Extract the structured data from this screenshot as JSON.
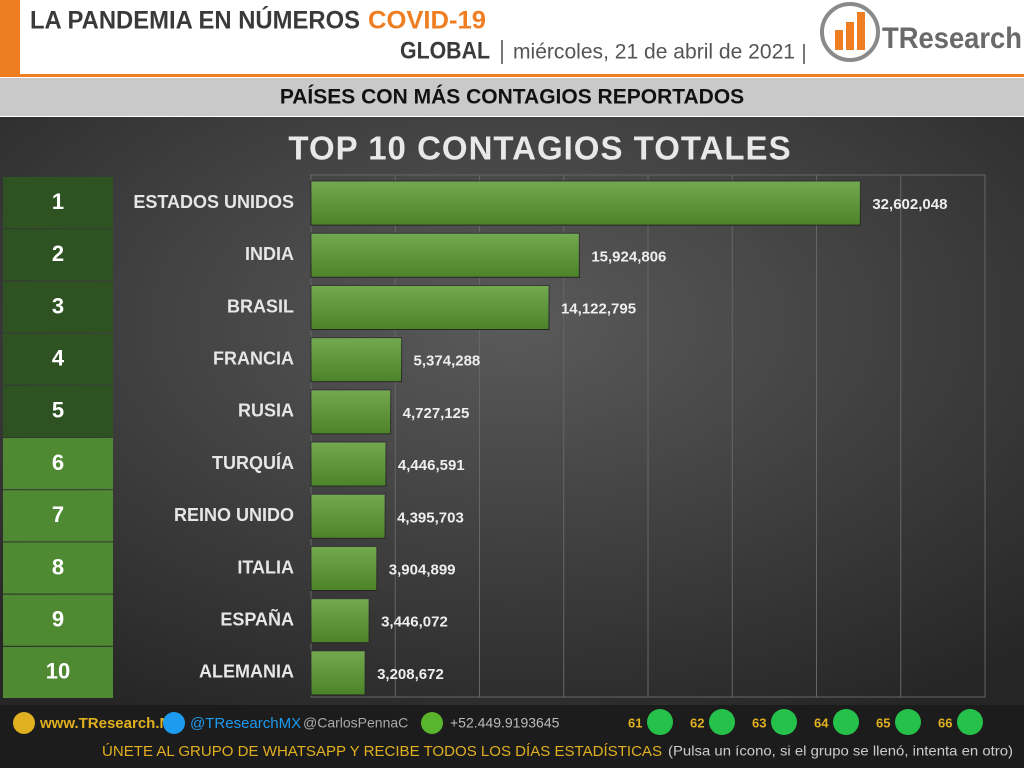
{
  "header": {
    "title": "LA PANDEMIA EN NÚMEROS",
    "title_highlight": "COVID-19",
    "scope": "GLOBAL",
    "date": "miércoles, 21 de abril de 2021",
    "logo": "TResearch"
  },
  "banner": "PAÍSES CON MÁS CONTAGIOS REPORTADOS",
  "chart_data": {
    "type": "bar",
    "orientation": "horizontal",
    "title": "TOP 10 CONTAGIOS TOTALES",
    "ranks": [
      1,
      2,
      3,
      4,
      5,
      6,
      7,
      8,
      9,
      10
    ],
    "categories": [
      "ESTADOS UNIDOS",
      "INDIA",
      "BRASIL",
      "FRANCIA",
      "RUSIA",
      "TURQUÍA",
      "REINO UNIDO",
      "ITALIA",
      "ESPAÑA",
      "ALEMANIA"
    ],
    "values": [
      32602048,
      15924806,
      14122795,
      5374288,
      4727125,
      4446591,
      4395703,
      3904899,
      3446072,
      3208672
    ],
    "value_labels": [
      "32,602,048",
      "15,924,806",
      "14,122,795",
      "5,374,288",
      "4,727,125",
      "4,446,591",
      "4,395,703",
      "3,904,899",
      "3,446,072",
      "3,208,672"
    ],
    "color": "#5a9a30",
    "xlim": [
      0,
      40000000
    ],
    "grid": true
  },
  "footer": {
    "website": "www.TResearch.Mx",
    "twitter": "@TResearchMX",
    "twitter2": "@CarlosPennaC",
    "phone": "+52.449.9193645",
    "groups": [
      "61",
      "62",
      "63",
      "64",
      "65",
      "66"
    ],
    "call": "ÚNETE AL GRUPO DE WHATSAPP Y RECIBE TODOS LOS DÍAS ESTADÍSTICAS",
    "note": "(Pulsa un ícono, si el grupo se llenó, intenta en otro)"
  }
}
